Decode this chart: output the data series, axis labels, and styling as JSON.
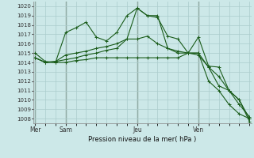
{
  "bg_color": "#cce8e8",
  "grid_color": "#aacccc",
  "line_color": "#1a5c1a",
  "title": "Pression niveau de la mer( hPa )",
  "ylim": [
    1007.5,
    1020.5
  ],
  "yticks": [
    1008,
    1009,
    1010,
    1011,
    1012,
    1013,
    1014,
    1015,
    1016,
    1017,
    1018,
    1019,
    1020
  ],
  "day_labels": [
    "Mer",
    "Sam",
    "Jeu",
    "Ven"
  ],
  "day_positions": [
    0,
    3,
    10,
    16
  ],
  "n_points": 22,
  "series": [
    [
      1015.0,
      1014.1,
      1014.0,
      1017.2,
      1017.7,
      1018.3,
      1016.7,
      1016.3,
      1017.2,
      1019.0,
      1019.8,
      1019.0,
      1018.8,
      1016.8,
      1016.5,
      1015.0,
      1016.7,
      1013.6,
      1013.5,
      1011.0,
      1010.0,
      1008.0
    ],
    [
      1014.5,
      1014.0,
      1014.1,
      1014.8,
      1015.0,
      1015.2,
      1015.5,
      1015.7,
      1016.0,
      1016.5,
      1019.8,
      1019.0,
      1019.0,
      1015.5,
      1015.2,
      1015.0,
      1015.0,
      1012.0,
      1011.0,
      1009.5,
      1008.5,
      1008.0
    ],
    [
      1014.5,
      1014.0,
      1014.1,
      1014.3,
      1014.5,
      1014.8,
      1015.0,
      1015.3,
      1015.5,
      1016.5,
      1016.5,
      1016.8,
      1016.0,
      1015.5,
      1015.0,
      1015.0,
      1014.8,
      1013.5,
      1012.5,
      1011.0,
      1009.5,
      1008.2
    ],
    [
      1014.5,
      1014.0,
      1014.0,
      1014.0,
      1014.2,
      1014.3,
      1014.5,
      1014.5,
      1014.5,
      1014.5,
      1014.5,
      1014.5,
      1014.5,
      1014.5,
      1014.5,
      1015.0,
      1015.0,
      1013.5,
      1011.5,
      1011.0,
      1010.0,
      1007.7
    ]
  ]
}
